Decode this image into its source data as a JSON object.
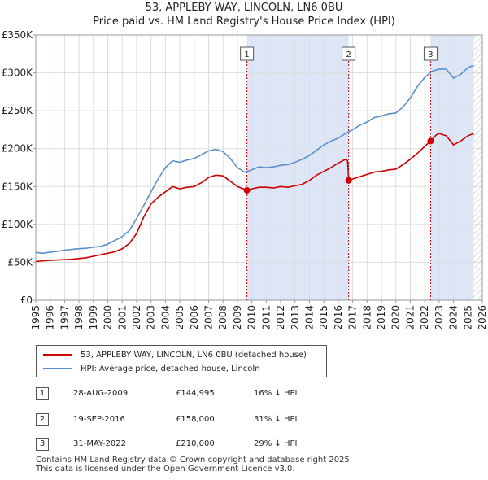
{
  "header": {
    "title": "53, APPLEBY WAY, LINCOLN, LN6 0BU",
    "subtitle": "Price paid vs. HM Land Registry's House Price Index (HPI)"
  },
  "legend": {
    "property_label": "53, APPLEBY WAY, LINCOLN, LN6 0BU (detached house)",
    "hpi_label": "HPI: Average price, detached house, Lincoln"
  },
  "colors": {
    "property": "#cc0000",
    "hpi": "#5b8fcc",
    "shade": "#dde6f7",
    "grid": "#dddddd"
  },
  "transactions": [
    {
      "num": "1",
      "date": "28-AUG-2009",
      "price": "£144,995",
      "hpi": "16% ↓ HPI"
    },
    {
      "num": "2",
      "date": "19-SEP-2016",
      "price": "£158,000",
      "hpi": "31% ↓ HPI"
    },
    {
      "num": "3",
      "date": "31-MAY-2022",
      "price": "£210,000",
      "hpi": "29% ↓ HPI"
    }
  ],
  "footer": {
    "line1": "Contains HM Land Registry data © Crown copyright and database right 2025.",
    "line2": "This data is licensed under the Open Government Licence v3.0."
  },
  "chart_data": {
    "type": "line",
    "title": "53, APPLEBY WAY, LINCOLN, LN6 0BU",
    "subtitle": "Price paid vs. HM Land Registry's House Price Index (HPI)",
    "xlim": [
      1995,
      2026
    ],
    "ylim": [
      0,
      350000
    ],
    "x_ticks": [
      "1995",
      "1996",
      "1997",
      "1998",
      "1999",
      "2000",
      "2001",
      "2002",
      "2003",
      "2004",
      "2005",
      "2006",
      "2007",
      "2008",
      "2009",
      "2010",
      "2011",
      "2012",
      "2013",
      "2014",
      "2015",
      "2016",
      "2017",
      "2018",
      "2019",
      "2020",
      "2021",
      "2022",
      "2023",
      "2024",
      "2025",
      "2026"
    ],
    "y_ticks": [
      {
        "value": 0,
        "label": "£0"
      },
      {
        "value": 50000,
        "label": "£50K"
      },
      {
        "value": 100000,
        "label": "£100K"
      },
      {
        "value": 150000,
        "label": "£150K"
      },
      {
        "value": 200000,
        "label": "£200K"
      },
      {
        "value": 250000,
        "label": "£250K"
      },
      {
        "value": 300000,
        "label": "£300K"
      },
      {
        "value": 350000,
        "label": "£350K"
      }
    ],
    "grid": true,
    "shaded_periods": [
      [
        2009.66,
        2016.72
      ],
      [
        2022.41,
        2025.4
      ]
    ],
    "hatched_period": [
      2025.4,
      2026
    ],
    "sale_markers": [
      {
        "label": "1",
        "x": 2009.66,
        "y": 144995
      },
      {
        "label": "2",
        "x": 2016.72,
        "y": 158000
      },
      {
        "label": "3",
        "x": 2022.41,
        "y": 210000
      }
    ],
    "series": [
      {
        "name": "HPI: Average price, detached house, Lincoln",
        "color": "#5b8fcc",
        "points": [
          [
            1995,
            63000
          ],
          [
            1995.5,
            62000
          ],
          [
            1996,
            63500
          ],
          [
            1996.5,
            64500
          ],
          [
            1997,
            66000
          ],
          [
            1997.5,
            67000
          ],
          [
            1998,
            68000
          ],
          [
            1998.5,
            68500
          ],
          [
            1999,
            70000
          ],
          [
            1999.5,
            71000
          ],
          [
            2000,
            74000
          ],
          [
            2000.5,
            79000
          ],
          [
            2001,
            84000
          ],
          [
            2001.5,
            92000
          ],
          [
            2002,
            108000
          ],
          [
            2002.5,
            125000
          ],
          [
            2003,
            143000
          ],
          [
            2003.5,
            160000
          ],
          [
            2004,
            175000
          ],
          [
            2004.5,
            184000
          ],
          [
            2005,
            182000
          ],
          [
            2005.5,
            185000
          ],
          [
            2006,
            187000
          ],
          [
            2006.5,
            192000
          ],
          [
            2007,
            197000
          ],
          [
            2007.5,
            199000
          ],
          [
            2008,
            196000
          ],
          [
            2008.5,
            187000
          ],
          [
            2009,
            175000
          ],
          [
            2009.5,
            169000
          ],
          [
            2010,
            172000
          ],
          [
            2010.5,
            176000
          ],
          [
            2011,
            175000
          ],
          [
            2011.5,
            176000
          ],
          [
            2012,
            178000
          ],
          [
            2012.5,
            179000
          ],
          [
            2013,
            182000
          ],
          [
            2013.5,
            186000
          ],
          [
            2014,
            191000
          ],
          [
            2014.5,
            198000
          ],
          [
            2015,
            205000
          ],
          [
            2015.5,
            210000
          ],
          [
            2016,
            214000
          ],
          [
            2016.5,
            220000
          ],
          [
            2017,
            225000
          ],
          [
            2017.5,
            231000
          ],
          [
            2018,
            235000
          ],
          [
            2018.5,
            241000
          ],
          [
            2019,
            243000
          ],
          [
            2019.5,
            246000
          ],
          [
            2020,
            247000
          ],
          [
            2020.5,
            255000
          ],
          [
            2021,
            267000
          ],
          [
            2021.5,
            282000
          ],
          [
            2022,
            294000
          ],
          [
            2022.5,
            302000
          ],
          [
            2023,
            305000
          ],
          [
            2023.5,
            305000
          ],
          [
            2024,
            293000
          ],
          [
            2024.5,
            298000
          ],
          [
            2025,
            307000
          ],
          [
            2025.4,
            310000
          ]
        ]
      },
      {
        "name": "53, APPLEBY WAY, LINCOLN, LN6 0BU (detached house)",
        "color": "#cc0000",
        "points": [
          [
            1995,
            51000
          ],
          [
            1995.5,
            52000
          ],
          [
            1996,
            52500
          ],
          [
            1996.5,
            53000
          ],
          [
            1997,
            53500
          ],
          [
            1997.5,
            54000
          ],
          [
            1998,
            55000
          ],
          [
            1998.5,
            56000
          ],
          [
            1999,
            58000
          ],
          [
            1999.5,
            60000
          ],
          [
            2000,
            62000
          ],
          [
            2000.5,
            64000
          ],
          [
            2001,
            68000
          ],
          [
            2001.5,
            75000
          ],
          [
            2002,
            88000
          ],
          [
            2002.5,
            110000
          ],
          [
            2003,
            127000
          ],
          [
            2003.5,
            136000
          ],
          [
            2004,
            143000
          ],
          [
            2004.5,
            150000
          ],
          [
            2005,
            147000
          ],
          [
            2005.5,
            149000
          ],
          [
            2006,
            150000
          ],
          [
            2006.5,
            155000
          ],
          [
            2007,
            162000
          ],
          [
            2007.5,
            165000
          ],
          [
            2008,
            164000
          ],
          [
            2008.5,
            157000
          ],
          [
            2009,
            150000
          ],
          [
            2009.66,
            144995
          ],
          [
            2010,
            147000
          ],
          [
            2010.5,
            149000
          ],
          [
            2011,
            149000
          ],
          [
            2011.5,
            148000
          ],
          [
            2012,
            150000
          ],
          [
            2012.5,
            149000
          ],
          [
            2013,
            151000
          ],
          [
            2013.5,
            153000
          ],
          [
            2014,
            158000
          ],
          [
            2014.5,
            165000
          ],
          [
            2015,
            170000
          ],
          [
            2015.5,
            175000
          ],
          [
            2016,
            181000
          ],
          [
            2016.5,
            186000
          ],
          [
            2016.65,
            184000
          ],
          [
            2016.72,
            158000
          ],
          [
            2017,
            160000
          ],
          [
            2017.5,
            163000
          ],
          [
            2018,
            166000
          ],
          [
            2018.5,
            169000
          ],
          [
            2019,
            170000
          ],
          [
            2019.5,
            172000
          ],
          [
            2020,
            173000
          ],
          [
            2020.5,
            179000
          ],
          [
            2021,
            186000
          ],
          [
            2021.5,
            194000
          ],
          [
            2022,
            203000
          ],
          [
            2022.41,
            210000
          ],
          [
            2022.8,
            218000
          ],
          [
            2023,
            220000
          ],
          [
            2023.5,
            217000
          ],
          [
            2024,
            205000
          ],
          [
            2024.5,
            210000
          ],
          [
            2025,
            217000
          ],
          [
            2025.4,
            220000
          ]
        ]
      }
    ]
  }
}
